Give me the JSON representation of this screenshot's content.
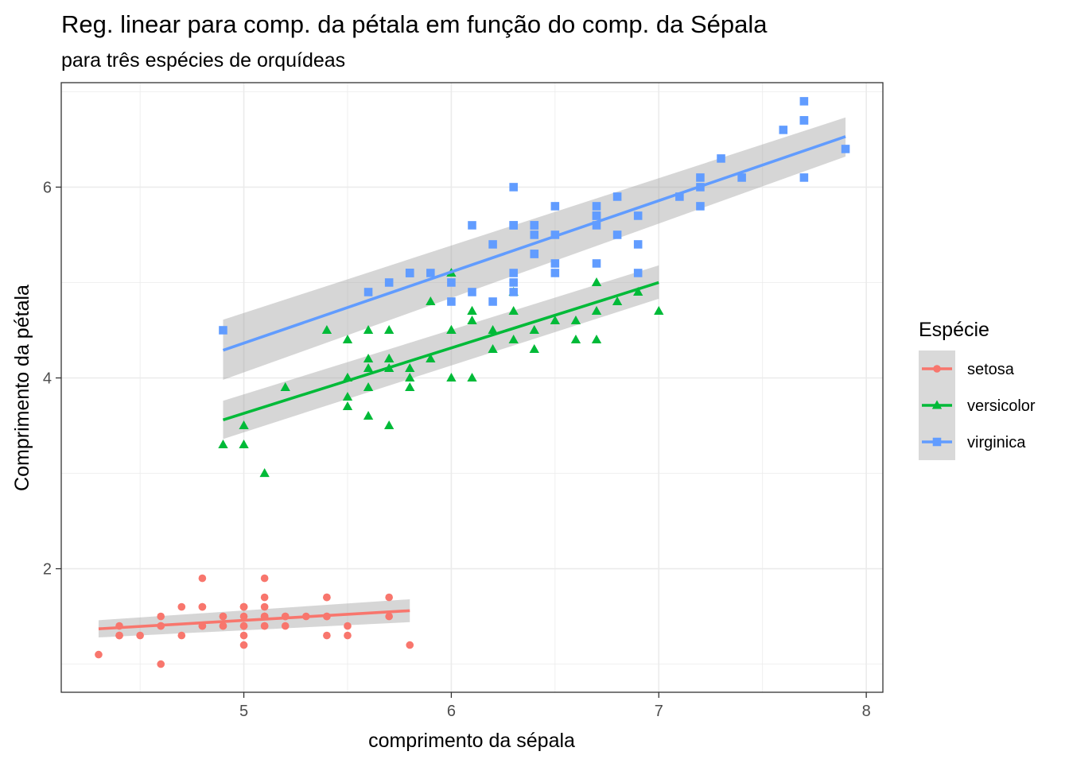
{
  "chart_data": {
    "type": "scatter",
    "title": "Reg. linear para comp. da pétala em função do comp. da Sépala",
    "subtitle": "para três espécies de orquídeas",
    "xlabel": "comprimento da sépala",
    "ylabel": "Comprimento da pétala",
    "xlim": [
      4.12,
      8.08
    ],
    "ylim": [
      0.705,
      7.095
    ],
    "xticks": [
      5,
      6,
      7,
      8
    ],
    "yticks": [
      2,
      4,
      6
    ],
    "grid": true,
    "legend": {
      "title": "Espécie",
      "position": "right",
      "entries": [
        "setosa",
        "versicolor",
        "virginica"
      ]
    },
    "series": [
      {
        "name": "setosa",
        "color": "#F8766D",
        "marker": "circle",
        "points": [
          [
            5.1,
            1.4
          ],
          [
            4.9,
            1.4
          ],
          [
            4.7,
            1.3
          ],
          [
            4.6,
            1.5
          ],
          [
            5.0,
            1.4
          ],
          [
            5.4,
            1.7
          ],
          [
            4.6,
            1.4
          ],
          [
            5.0,
            1.5
          ],
          [
            4.4,
            1.4
          ],
          [
            4.9,
            1.5
          ],
          [
            5.4,
            1.5
          ],
          [
            4.8,
            1.6
          ],
          [
            4.8,
            1.4
          ],
          [
            4.3,
            1.1
          ],
          [
            5.8,
            1.2
          ],
          [
            5.7,
            1.5
          ],
          [
            5.4,
            1.3
          ],
          [
            5.1,
            1.4
          ],
          [
            5.7,
            1.7
          ],
          [
            5.1,
            1.5
          ],
          [
            5.4,
            1.7
          ],
          [
            5.1,
            1.5
          ],
          [
            4.6,
            1.0
          ],
          [
            5.1,
            1.7
          ],
          [
            4.8,
            1.9
          ],
          [
            5.0,
            1.6
          ],
          [
            5.0,
            1.6
          ],
          [
            5.2,
            1.5
          ],
          [
            5.2,
            1.4
          ],
          [
            4.7,
            1.6
          ],
          [
            4.8,
            1.6
          ],
          [
            5.4,
            1.5
          ],
          [
            5.2,
            1.5
          ],
          [
            5.5,
            1.4
          ],
          [
            4.9,
            1.5
          ],
          [
            5.0,
            1.2
          ],
          [
            5.5,
            1.3
          ],
          [
            4.9,
            1.4
          ],
          [
            4.4,
            1.3
          ],
          [
            5.1,
            1.5
          ],
          [
            5.0,
            1.3
          ],
          [
            4.5,
            1.3
          ],
          [
            4.4,
            1.3
          ],
          [
            5.0,
            1.6
          ],
          [
            5.1,
            1.9
          ],
          [
            4.8,
            1.4
          ],
          [
            5.1,
            1.6
          ],
          [
            4.6,
            1.4
          ],
          [
            5.3,
            1.5
          ],
          [
            5.0,
            1.4
          ]
        ],
        "fit": {
          "x_start": 4.3,
          "y_start": 1.37,
          "x_end": 5.8,
          "y_end": 1.56,
          "band_start": [
            1.28,
            1.46
          ],
          "band_end": [
            1.44,
            1.68
          ]
        }
      },
      {
        "name": "versicolor",
        "color": "#00BA38",
        "marker": "triangle",
        "points": [
          [
            7.0,
            4.7
          ],
          [
            6.4,
            4.5
          ],
          [
            6.9,
            4.9
          ],
          [
            5.5,
            4.0
          ],
          [
            6.5,
            4.6
          ],
          [
            5.7,
            4.5
          ],
          [
            6.3,
            4.7
          ],
          [
            4.9,
            3.3
          ],
          [
            6.6,
            4.6
          ],
          [
            5.2,
            3.9
          ],
          [
            5.0,
            3.5
          ],
          [
            5.9,
            4.2
          ],
          [
            6.0,
            4.0
          ],
          [
            6.1,
            4.7
          ],
          [
            5.6,
            3.6
          ],
          [
            6.7,
            4.4
          ],
          [
            5.6,
            4.5
          ],
          [
            5.8,
            4.1
          ],
          [
            6.2,
            4.5
          ],
          [
            5.6,
            3.9
          ],
          [
            5.9,
            4.8
          ],
          [
            6.1,
            4.0
          ],
          [
            6.3,
            4.9
          ],
          [
            6.1,
            4.7
          ],
          [
            6.4,
            4.3
          ],
          [
            6.6,
            4.4
          ],
          [
            6.8,
            4.8
          ],
          [
            6.7,
            5.0
          ],
          [
            6.0,
            4.5
          ],
          [
            5.7,
            3.5
          ],
          [
            5.5,
            3.8
          ],
          [
            5.5,
            3.7
          ],
          [
            5.8,
            3.9
          ],
          [
            6.0,
            5.1
          ],
          [
            5.4,
            4.5
          ],
          [
            6.0,
            4.5
          ],
          [
            6.7,
            4.7
          ],
          [
            6.3,
            4.4
          ],
          [
            5.6,
            4.1
          ],
          [
            5.5,
            4.0
          ],
          [
            5.5,
            4.4
          ],
          [
            6.1,
            4.6
          ],
          [
            5.8,
            4.0
          ],
          [
            5.0,
            3.3
          ],
          [
            5.6,
            4.2
          ],
          [
            5.7,
            4.2
          ],
          [
            5.7,
            4.2
          ],
          [
            6.2,
            4.3
          ],
          [
            5.1,
            3.0
          ],
          [
            5.7,
            4.1
          ]
        ],
        "fit": {
          "x_start": 4.9,
          "y_start": 3.56,
          "x_end": 7.0,
          "y_end": 5.0,
          "band_start": [
            3.36,
            3.76
          ],
          "band_end": [
            4.83,
            5.18
          ]
        }
      },
      {
        "name": "virginica",
        "color": "#619CFF",
        "marker": "square",
        "points": [
          [
            6.3,
            6.0
          ],
          [
            5.8,
            5.1
          ],
          [
            7.1,
            5.9
          ],
          [
            6.3,
            5.6
          ],
          [
            6.5,
            5.8
          ],
          [
            7.6,
            6.6
          ],
          [
            4.9,
            4.5
          ],
          [
            7.3,
            6.3
          ],
          [
            6.7,
            5.8
          ],
          [
            7.2,
            6.1
          ],
          [
            6.5,
            5.1
          ],
          [
            6.4,
            5.3
          ],
          [
            6.8,
            5.5
          ],
          [
            5.7,
            5.0
          ],
          [
            5.8,
            5.1
          ],
          [
            6.4,
            5.3
          ],
          [
            6.5,
            5.5
          ],
          [
            7.7,
            6.7
          ],
          [
            7.7,
            6.9
          ],
          [
            6.0,
            5.0
          ],
          [
            6.9,
            5.7
          ],
          [
            5.6,
            4.9
          ],
          [
            7.7,
            6.7
          ],
          [
            6.3,
            4.9
          ],
          [
            6.7,
            5.7
          ],
          [
            7.2,
            6.0
          ],
          [
            6.2,
            4.8
          ],
          [
            6.1,
            4.9
          ],
          [
            6.4,
            5.6
          ],
          [
            7.2,
            5.8
          ],
          [
            7.4,
            6.1
          ],
          [
            7.9,
            6.4
          ],
          [
            6.4,
            5.6
          ],
          [
            6.3,
            5.1
          ],
          [
            6.1,
            5.6
          ],
          [
            7.7,
            6.1
          ],
          [
            6.3,
            5.6
          ],
          [
            6.4,
            5.5
          ],
          [
            6.0,
            4.8
          ],
          [
            6.9,
            5.4
          ],
          [
            6.7,
            5.6
          ],
          [
            6.9,
            5.1
          ],
          [
            5.8,
            5.1
          ],
          [
            6.8,
            5.9
          ],
          [
            6.7,
            5.7
          ],
          [
            6.7,
            5.2
          ],
          [
            6.3,
            5.0
          ],
          [
            6.5,
            5.2
          ],
          [
            6.2,
            5.4
          ],
          [
            5.9,
            5.1
          ]
        ],
        "fit": {
          "x_start": 4.9,
          "y_start": 4.29,
          "x_end": 7.9,
          "y_end": 6.53,
          "band_start": [
            3.98,
            4.61
          ],
          "band_end": [
            6.32,
            6.73
          ]
        }
      }
    ]
  }
}
